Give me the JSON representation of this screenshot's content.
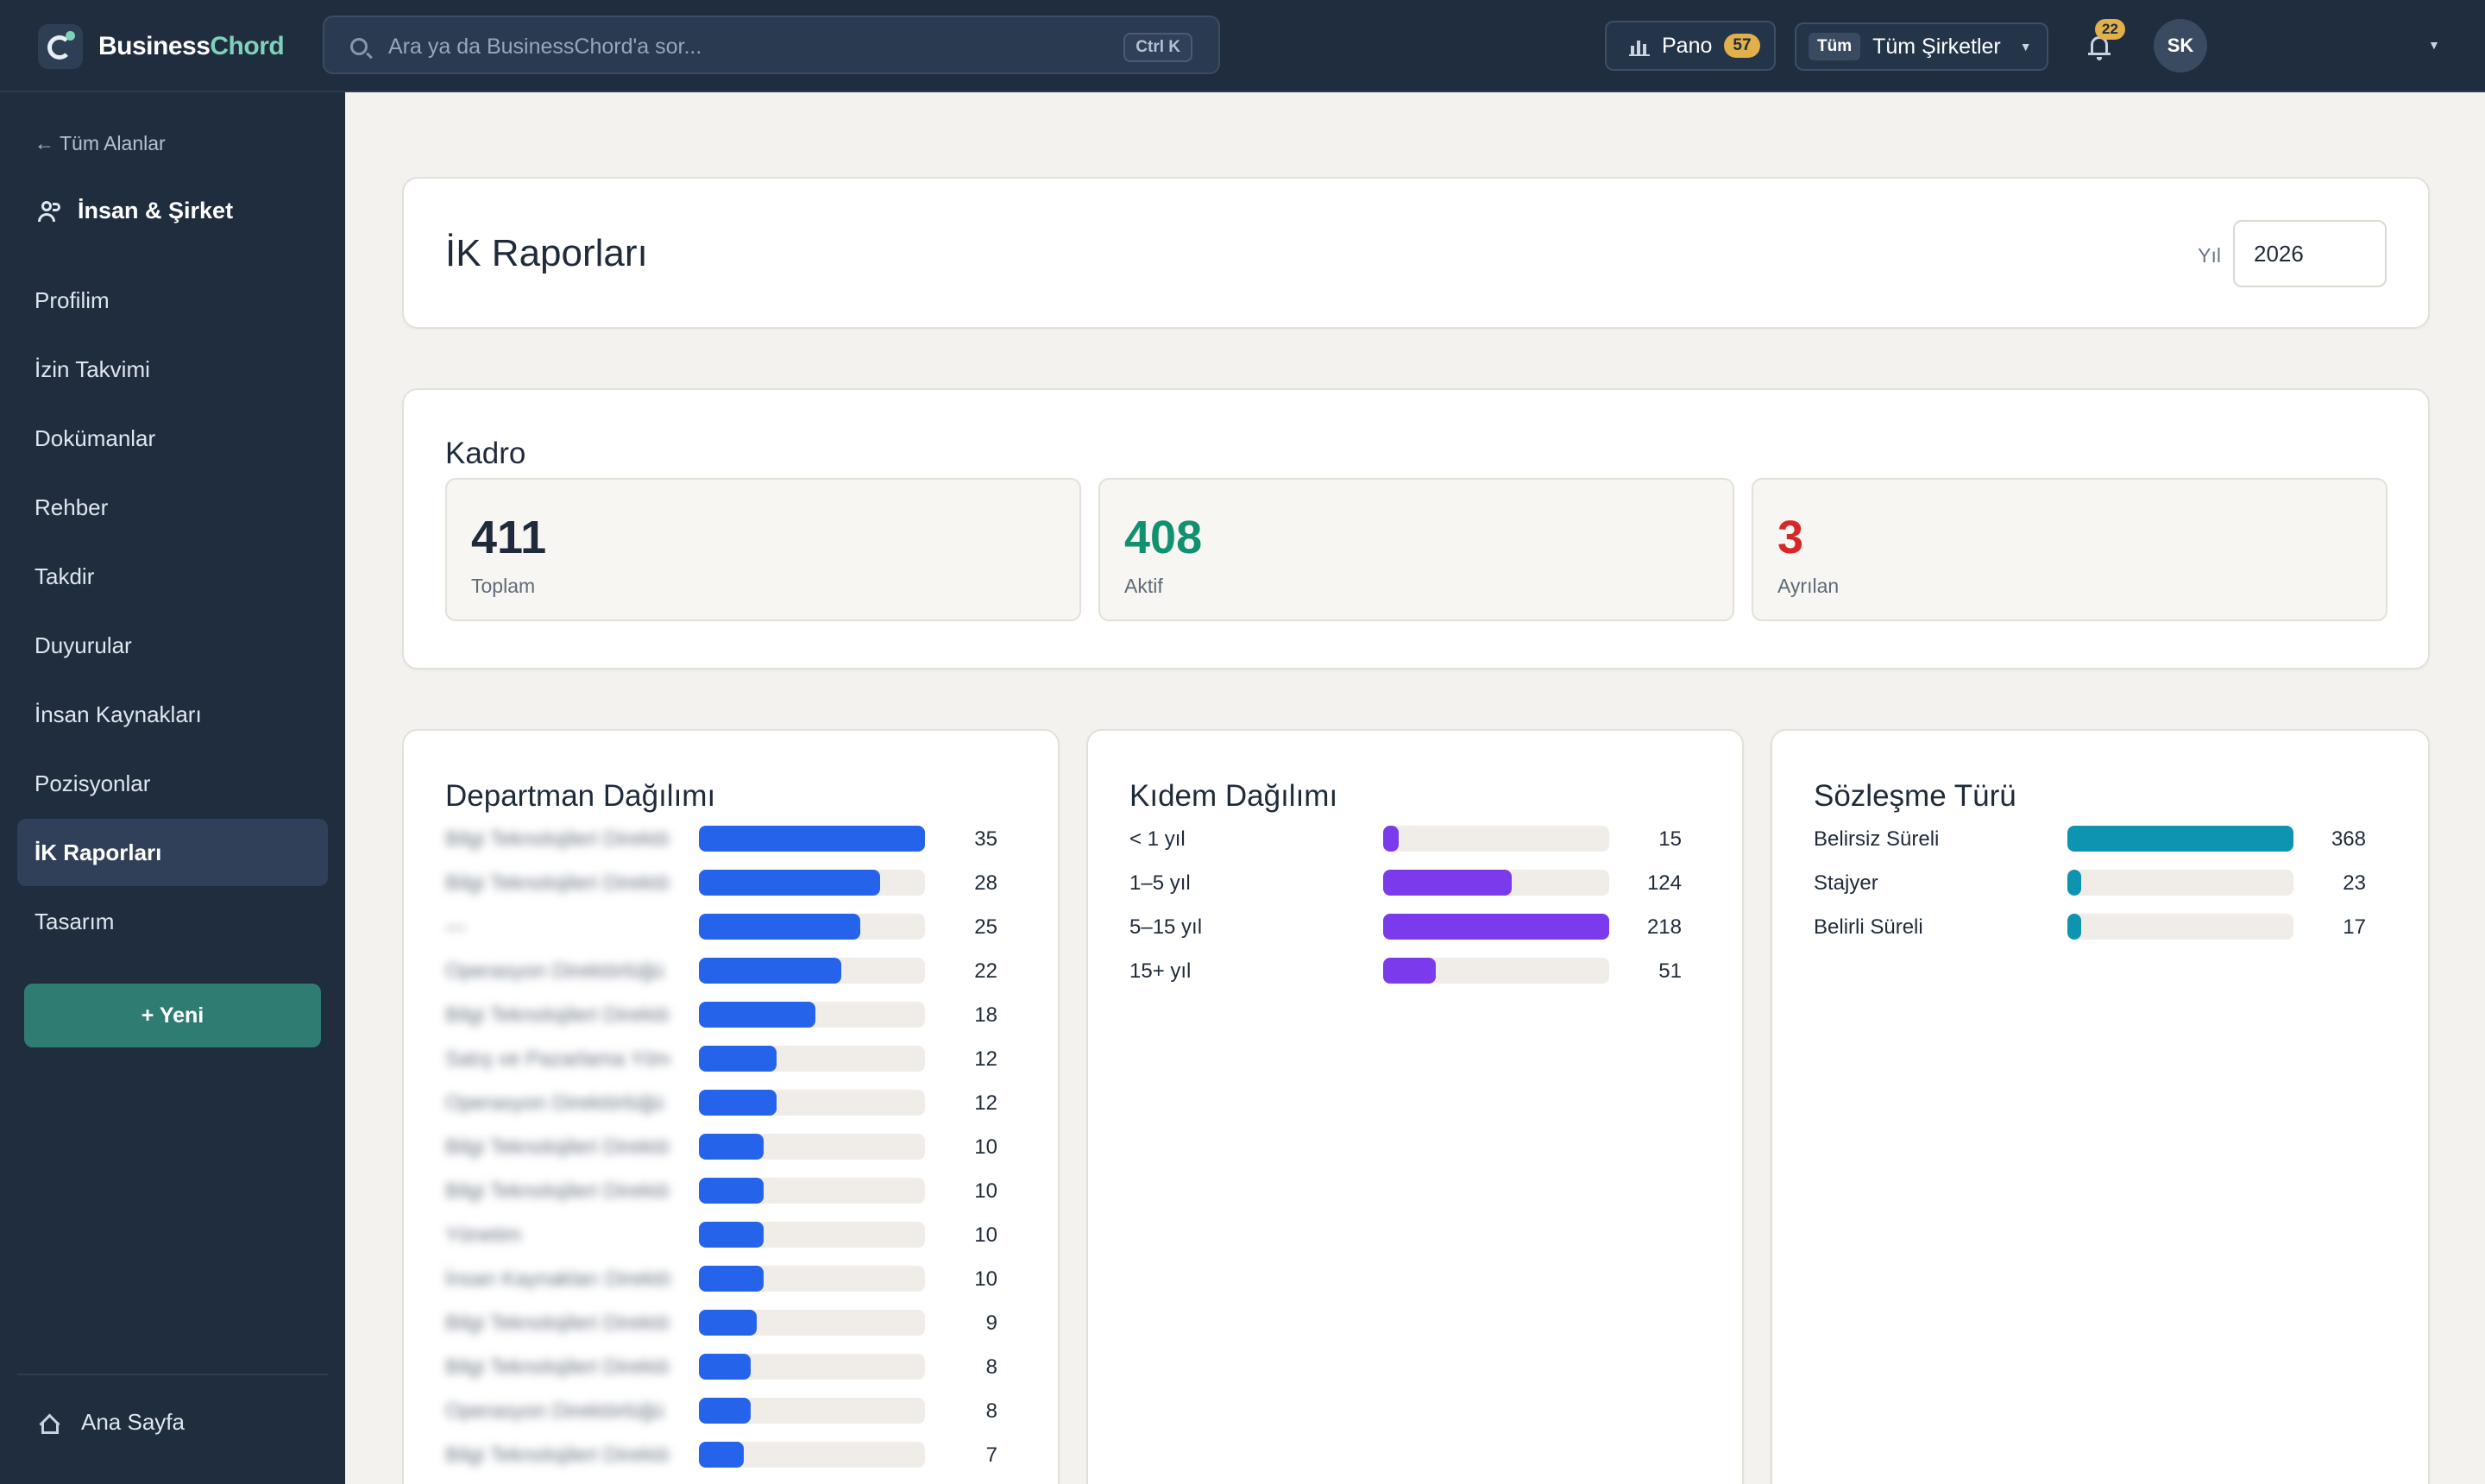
{
  "brand": {
    "name_part1": "Business",
    "name_part2": "Chord",
    "accent": "#7fd1b9"
  },
  "search": {
    "placeholder": "Ara ya da BusinessChord'a sor...",
    "shortcut": "Ctrl K"
  },
  "topbar": {
    "pano_label": "Pano",
    "pano_count": "57",
    "company_tag": "Tüm",
    "company_label": "Tüm Şirketler",
    "notification_count": "22",
    "user_initials": "SK"
  },
  "sidebar": {
    "back_label": "← Tüm Alanlar",
    "section_title": "İnsan & Şirket",
    "items": [
      {
        "label": "Profilim"
      },
      {
        "label": "İzin Takvimi"
      },
      {
        "label": "Dokümanlar"
      },
      {
        "label": "Rehber"
      },
      {
        "label": "Takdir"
      },
      {
        "label": "Duyurular"
      },
      {
        "label": "İnsan Kaynakları"
      },
      {
        "label": "Pozisyonlar"
      },
      {
        "label": "İK Raporları"
      },
      {
        "label": "Tasarım"
      }
    ],
    "active_index": 8,
    "new_button": "+ Yeni",
    "home_label": "Ana Sayfa"
  },
  "header": {
    "title": "İK Raporları",
    "year_label": "Yıl",
    "year_value": "2026"
  },
  "kadro": {
    "title": "Kadro",
    "stats": [
      {
        "value": "411",
        "label": "Toplam",
        "color": "#1f2a3a"
      },
      {
        "value": "408",
        "label": "Aktif",
        "color": "#12906f"
      },
      {
        "value": "3",
        "label": "Ayrılan",
        "color": "#d62828"
      }
    ]
  },
  "department": {
    "title": "Departman Dağılımı",
    "color": "#2563eb",
    "max": 35,
    "rows": [
      {
        "name": "Bilgi Teknolojileri Direktörlüğü",
        "value": 35
      },
      {
        "name": "Bilgi Teknolojileri Direktörlüğü",
        "value": 28
      },
      {
        "name": "—",
        "value": 25
      },
      {
        "name": "Operasyon Direktörlüğü",
        "value": 22
      },
      {
        "name": "Bilgi Teknolojileri Direktörlüğü",
        "value": 18
      },
      {
        "name": "Satış ve Pazarlama Yönetimi",
        "value": 12
      },
      {
        "name": "Operasyon Direktörlüğü",
        "value": 12
      },
      {
        "name": "Bilgi Teknolojileri Direktörlüğü",
        "value": 10
      },
      {
        "name": "Bilgi Teknolojileri Direktörlüğü",
        "value": 10
      },
      {
        "name": "Yönetim",
        "value": 10
      },
      {
        "name": "İnsan Kaynakları Direktörlüğü",
        "value": 10
      },
      {
        "name": "Bilgi Teknolojileri Direktörlüğü",
        "value": 9
      },
      {
        "name": "Bilgi Teknolojileri Direktörlüğü",
        "value": 8
      },
      {
        "name": "Operasyon Direktörlüğü",
        "value": 8
      },
      {
        "name": "Bilgi Teknolojileri Direktörlüğü",
        "value": 7
      }
    ]
  },
  "seniority": {
    "title": "Kıdem Dağılımı",
    "color": "#7c3aed",
    "max": 218,
    "rows": [
      {
        "name": "< 1 yıl",
        "value": 15
      },
      {
        "name": "1–5 yıl",
        "value": 124
      },
      {
        "name": "5–15 yıl",
        "value": 218
      },
      {
        "name": "15+ yıl",
        "value": 51
      }
    ]
  },
  "contract": {
    "title": "Sözleşme Türü",
    "color": "#0e93b0",
    "max": 368,
    "rows": [
      {
        "name": "Belirsiz Süreli",
        "value": 368
      },
      {
        "name": "Stajyer",
        "value": 23
      },
      {
        "name": "Belirli Süreli",
        "value": 17
      }
    ]
  }
}
